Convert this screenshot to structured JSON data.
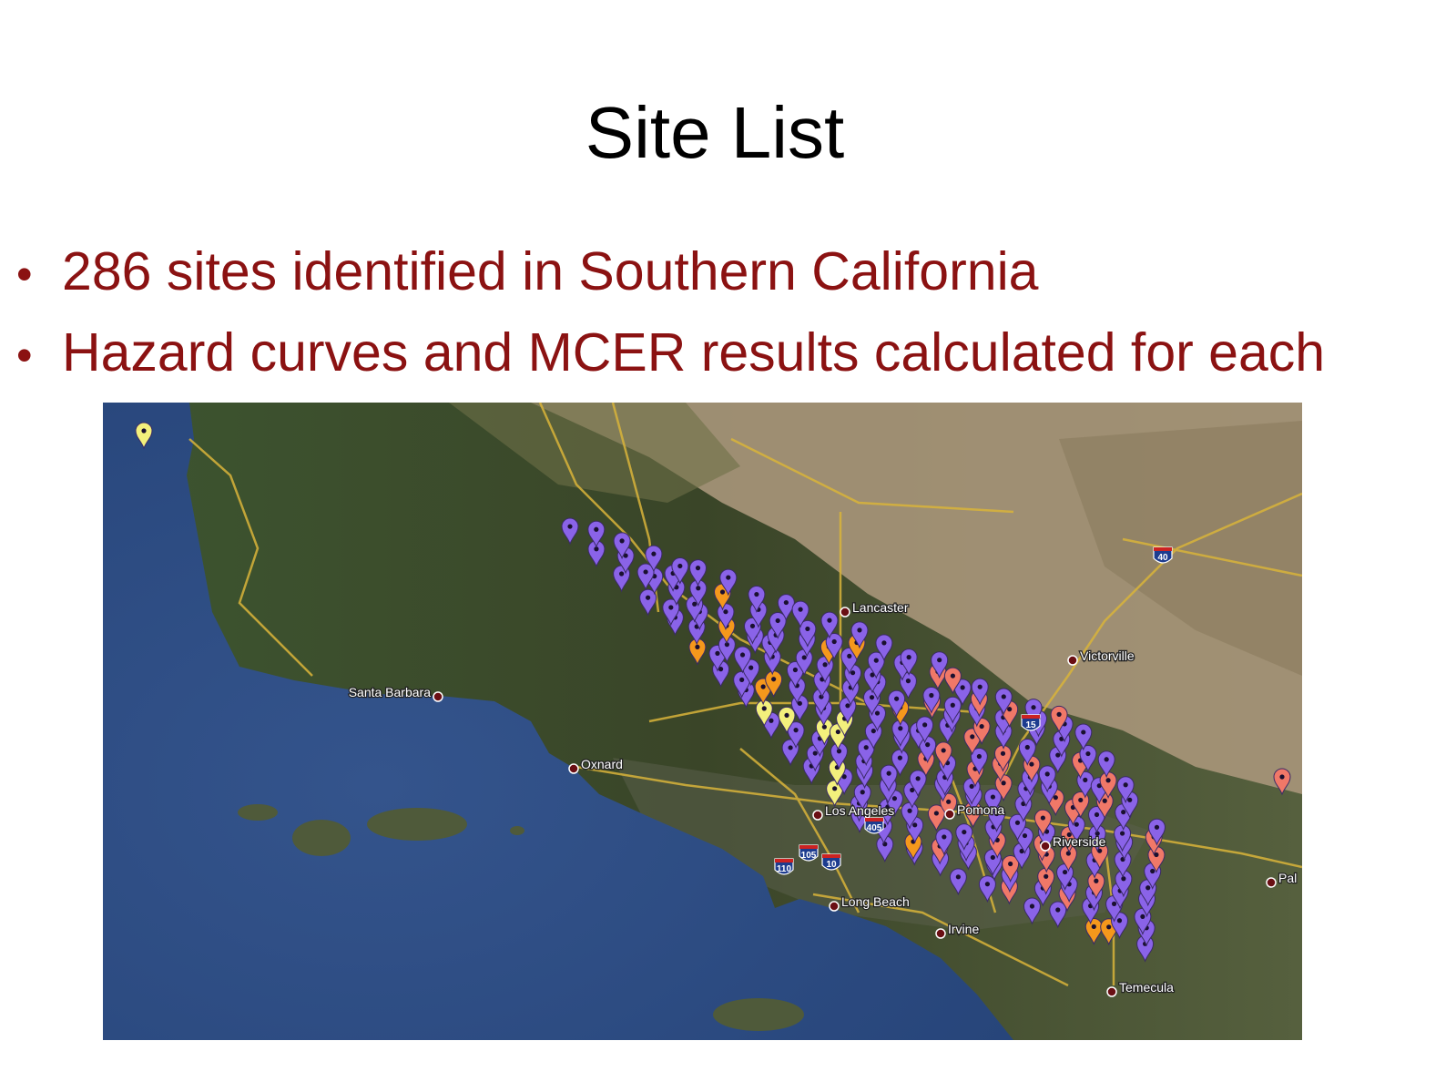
{
  "slide": {
    "title": "Site List",
    "bullets": [
      "286 sites identified in Southern California",
      "Hazard curves and MCER results calculated for each"
    ]
  },
  "map": {
    "cities": [
      {
        "name": "Santa Barbara"
      },
      {
        "name": "Oxnard"
      },
      {
        "name": "Lancaster"
      },
      {
        "name": "Victorville"
      },
      {
        "name": "Los Angeles"
      },
      {
        "name": "Pomona"
      },
      {
        "name": "Riverside"
      },
      {
        "name": "Long Beach"
      },
      {
        "name": "Irvine"
      },
      {
        "name": "Temecula"
      },
      {
        "name": "Pal"
      }
    ],
    "highway_shields": [
      "40",
      "15",
      "405",
      "10",
      "105",
      "110"
    ],
    "pin_colors": {
      "purple": "#8a63e8",
      "yellow": "#f3f07c",
      "orange": "#f5981c",
      "salmon": "#f07868"
    },
    "colors": {
      "ocean": "#2f4f86",
      "land": "#3f4b2e",
      "desert": "#a8967a",
      "road": "#d9b43a",
      "text_accent": "#8b1212"
    }
  }
}
